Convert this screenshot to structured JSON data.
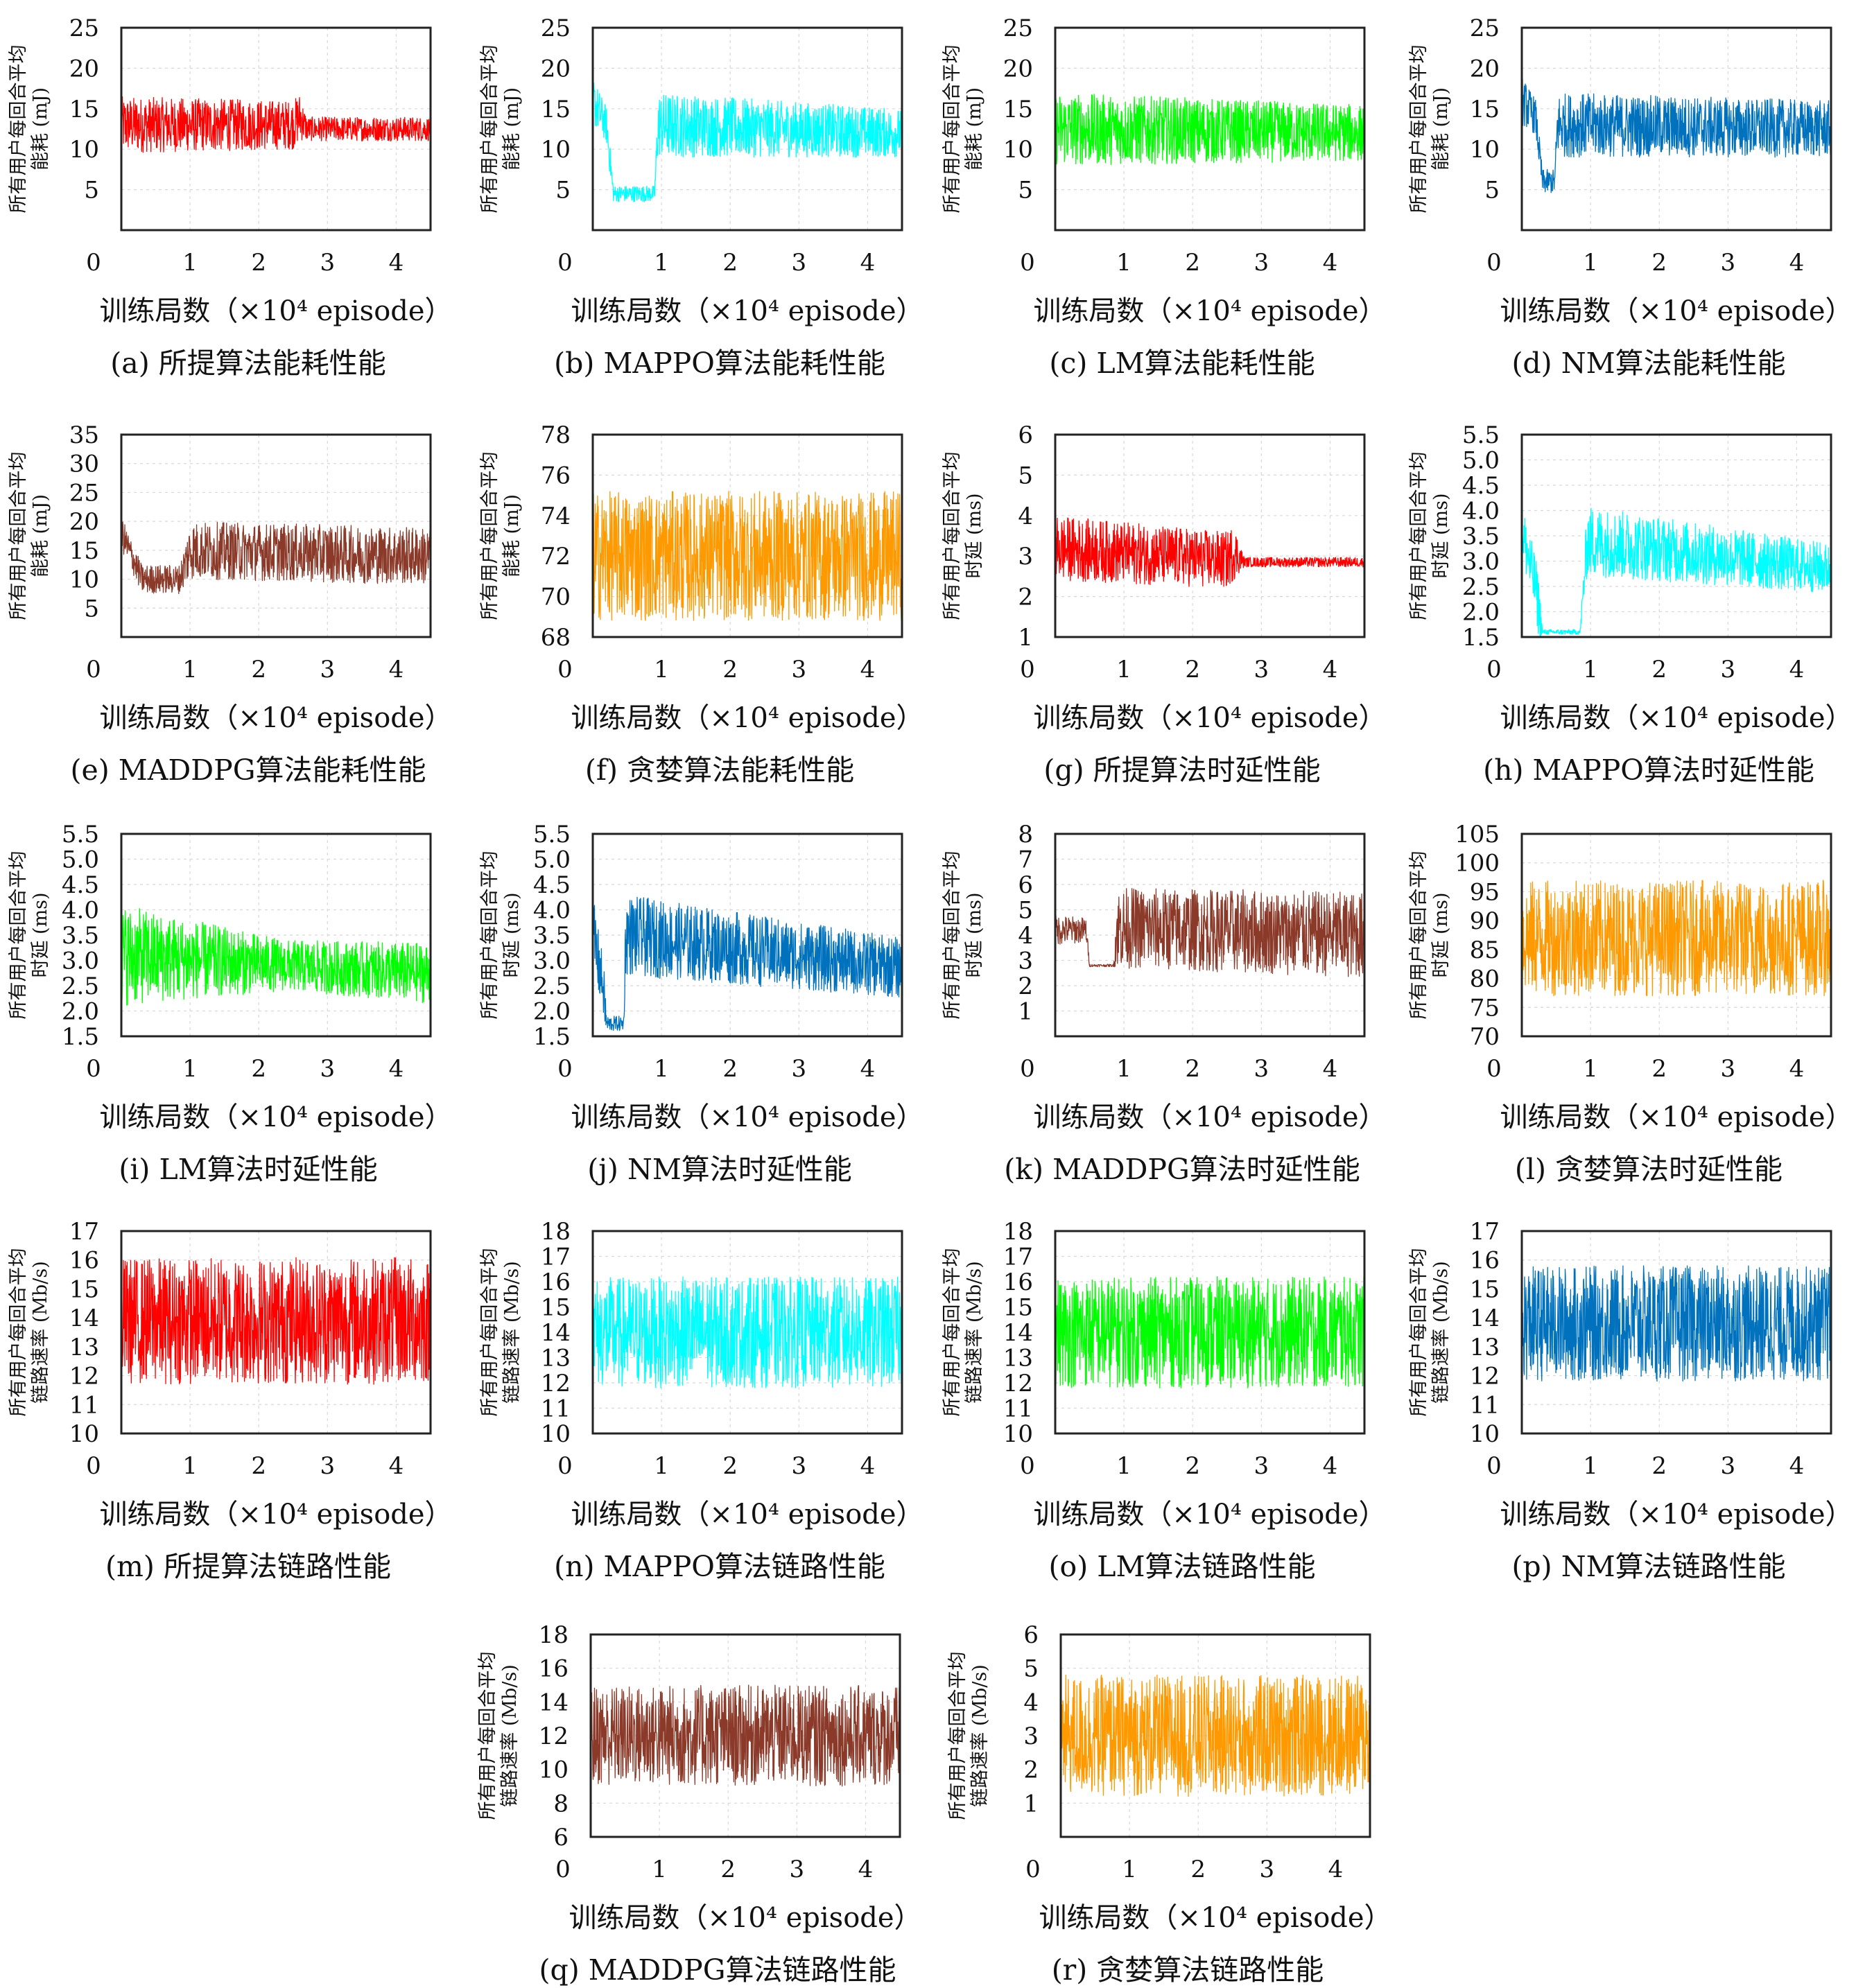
{
  "common": {
    "xlabel": "训练局数（×10⁴ episode）",
    "xticks": [
      "0",
      "1",
      "2",
      "3",
      "4"
    ],
    "xlim": [
      0,
      4.5
    ]
  },
  "panels": [
    {
      "caption": "(a) 所提算法能耗性能",
      "ylabel": [
        "所有用户每回合平均",
        "能耗 (mJ)"
      ],
      "ylim": [
        0,
        25
      ],
      "yticks": [
        "5",
        "10",
        "15",
        "20",
        "25"
      ],
      "color": "#ff0000"
    },
    {
      "caption": "(b) MAPPO算法能耗性能",
      "ylabel": [
        "所有用户每回合平均",
        "能耗 (mJ)"
      ],
      "ylim": [
        0,
        25
      ],
      "yticks": [
        "5",
        "10",
        "15",
        "20",
        "25"
      ],
      "color": "#00ffff"
    },
    {
      "caption": "(c) LM算法能耗性能",
      "ylabel": [
        "所有用户每回合平均",
        "能耗 (mJ)"
      ],
      "ylim": [
        0,
        25
      ],
      "yticks": [
        "5",
        "10",
        "15",
        "20",
        "25"
      ],
      "color": "#00ff00"
    },
    {
      "caption": "(d) NM算法能耗性能",
      "ylabel": [
        "所有用户每回合平均",
        "能耗 (mJ)"
      ],
      "ylim": [
        0,
        25
      ],
      "yticks": [
        "5",
        "10",
        "15",
        "20",
        "25"
      ],
      "color": "#0072bd"
    },
    {
      "caption": "(e) MADDPG算法能耗性能",
      "ylabel": [
        "所有用户每回合平均",
        "能耗 (mJ)"
      ],
      "ylim": [
        0,
        35
      ],
      "yticks": [
        "5",
        "10",
        "15",
        "20",
        "25",
        "30",
        "35"
      ],
      "color": "#8b3a2a"
    },
    {
      "caption": "(f) 贪婪算法能耗性能",
      "ylabel": [
        "所有用户每回合平均",
        "能耗 (mJ)"
      ],
      "ylim": [
        68,
        78
      ],
      "yticks": [
        "68",
        "70",
        "72",
        "74",
        "76",
        "78"
      ],
      "color": "#ff9900"
    },
    {
      "caption": "(g) 所提算法时延性能",
      "ylabel": [
        "所有用户每回合平均",
        "时延 (ms)"
      ],
      "ylim": [
        1,
        6
      ],
      "yticks": [
        "1",
        "2",
        "3",
        "4",
        "5",
        "6"
      ],
      "color": "#ff0000"
    },
    {
      "caption": "(h) MAPPO算法时延性能",
      "ylabel": [
        "所有用户每回合平均",
        "时延 (ms)"
      ],
      "ylim": [
        1.5,
        5.5
      ],
      "yticks": [
        "1.5",
        "2.0",
        "2.5",
        "3.0",
        "3.5",
        "4.0",
        "4.5",
        "5.0",
        "5.5"
      ],
      "color": "#00ffff"
    },
    {
      "caption": "(i) LM算法时延性能",
      "ylabel": [
        "所有用户每回合平均",
        "时延 (ms)"
      ],
      "ylim": [
        1.5,
        5.5
      ],
      "yticks": [
        "1.5",
        "2.0",
        "2.5",
        "3.0",
        "3.5",
        "4.0",
        "4.5",
        "5.0",
        "5.5"
      ],
      "color": "#00ff00"
    },
    {
      "caption": "(j) NM算法时延性能",
      "ylabel": [
        "所有用户每回合平均",
        "时延 (ms)"
      ],
      "ylim": [
        1.5,
        5.5
      ],
      "yticks": [
        "1.5",
        "2.0",
        "2.5",
        "3.0",
        "3.5",
        "4.0",
        "4.5",
        "5.0",
        "5.5"
      ],
      "color": "#0072bd"
    },
    {
      "caption": "(k) MADDPG算法时延性能",
      "ylabel": [
        "所有用户每回合平均",
        "时延 (ms)"
      ],
      "ylim": [
        0,
        8
      ],
      "yticks": [
        "1",
        "2",
        "3",
        "4",
        "5",
        "6",
        "7",
        "8"
      ],
      "color": "#8b3a2a"
    },
    {
      "caption": "(l) 贪婪算法时延性能",
      "ylabel": [
        "所有用户每回合平均",
        "时延 (ms)"
      ],
      "ylim": [
        70,
        105
      ],
      "yticks": [
        "70",
        "75",
        "80",
        "85",
        "90",
        "95",
        "100",
        "105"
      ],
      "color": "#ff9900"
    },
    {
      "caption": "(m) 所提算法链路性能",
      "ylabel": [
        "所有用户每回合平均",
        "链路速率 (Mb/s)"
      ],
      "ylim": [
        10,
        17
      ],
      "yticks": [
        "10",
        "11",
        "12",
        "13",
        "14",
        "15",
        "16",
        "17"
      ],
      "color": "#ff0000"
    },
    {
      "caption": "(n) MAPPO算法链路性能",
      "ylabel": [
        "所有用户每回合平均",
        "链路速率 (Mb/s)"
      ],
      "ylim": [
        10,
        18
      ],
      "yticks": [
        "10",
        "11",
        "12",
        "13",
        "14",
        "15",
        "16",
        "17",
        "18"
      ],
      "color": "#00ffff"
    },
    {
      "caption": "(o) LM算法链路性能",
      "ylabel": [
        "所有用户每回合平均",
        "链路速率 (Mb/s)"
      ],
      "ylim": [
        10,
        18
      ],
      "yticks": [
        "10",
        "11",
        "12",
        "13",
        "14",
        "15",
        "16",
        "17",
        "18"
      ],
      "color": "#00ff00"
    },
    {
      "caption": "(p) NM算法链路性能",
      "ylabel": [
        "所有用户每回合平均",
        "链路速率 (Mb/s)"
      ],
      "ylim": [
        10,
        17
      ],
      "yticks": [
        "10",
        "11",
        "12",
        "13",
        "14",
        "15",
        "16",
        "17"
      ],
      "color": "#0072bd"
    },
    {
      "caption": "(q) MADDPG算法链路性能",
      "ylabel": [
        "所有用户每回合平均",
        "链路速率 (Mb/s)"
      ],
      "ylim": [
        6,
        18
      ],
      "yticks": [
        "6",
        "8",
        "10",
        "12",
        "14",
        "16",
        "18"
      ],
      "color": "#8b3a2a"
    },
    {
      "caption": "(r) 贪婪算法链路性能",
      "ylabel": [
        "所有用户每回合平均",
        "链路速率 (Mb/s)"
      ],
      "ylim": [
        0,
        6
      ],
      "yticks": [
        "1",
        "2",
        "3",
        "4",
        "5",
        "6"
      ],
      "color": "#ff9900"
    }
  ],
  "chart_data": [
    {
      "type": "line",
      "series": [
        {
          "trend": [
            [
              0,
              13
            ],
            [
              2.5,
              13
            ],
            [
              2.6,
              14
            ],
            [
              2.7,
              12.5
            ],
            [
              4.5,
              12.5
            ]
          ],
          "spread": [
            [
              0,
              3.5
            ],
            [
              2.6,
              3.0
            ],
            [
              2.7,
              1.5
            ],
            [
              4.5,
              1.5
            ]
          ]
        }
      ]
    },
    {
      "type": "line",
      "series": [
        {
          "trend": [
            [
              0,
              16
            ],
            [
              0.2,
              13
            ],
            [
              0.3,
              4.5
            ],
            [
              0.9,
              4.5
            ],
            [
              0.95,
              13
            ],
            [
              4.5,
              12
            ]
          ],
          "spread": [
            [
              0,
              3
            ],
            [
              0.25,
              2
            ],
            [
              0.3,
              1
            ],
            [
              0.9,
              1
            ],
            [
              0.95,
              4
            ],
            [
              4.5,
              3
            ]
          ]
        }
      ]
    },
    {
      "type": "line",
      "series": [
        {
          "trend": [
            [
              0,
              12.5
            ],
            [
              4.5,
              12
            ]
          ],
          "spread": [
            [
              0,
              4.5
            ],
            [
              4.5,
              3.5
            ]
          ]
        }
      ]
    },
    {
      "type": "line",
      "series": [
        {
          "trend": [
            [
              0,
              16
            ],
            [
              0.2,
              14
            ],
            [
              0.3,
              6
            ],
            [
              0.48,
              6
            ],
            [
              0.52,
              13
            ],
            [
              4.5,
              12.5
            ]
          ],
          "spread": [
            [
              0,
              3
            ],
            [
              0.25,
              2
            ],
            [
              0.3,
              1.5
            ],
            [
              0.48,
              1.5
            ],
            [
              0.52,
              4
            ],
            [
              4.5,
              3.5
            ]
          ]
        }
      ]
    },
    {
      "type": "line",
      "series": [
        {
          "trend": [
            [
              0,
              18
            ],
            [
              0.3,
              10
            ],
            [
              0.85,
              10
            ],
            [
              1.0,
              15
            ],
            [
              4.5,
              14
            ]
          ],
          "spread": [
            [
              0,
              3
            ],
            [
              0.3,
              2.5
            ],
            [
              0.85,
              2.5
            ],
            [
              1.0,
              5
            ],
            [
              4.5,
              5
            ]
          ]
        }
      ]
    },
    {
      "type": "line",
      "series": [
        {
          "trend": [
            [
              0,
              72
            ],
            [
              4.5,
              72
            ]
          ],
          "spread": [
            [
              0,
              3.2
            ],
            [
              4.5,
              3.2
            ]
          ]
        }
      ]
    },
    {
      "type": "line",
      "series": [
        {
          "trend": [
            [
              0,
              3.2
            ],
            [
              2.5,
              2.9
            ],
            [
              2.6,
              3.1
            ],
            [
              2.75,
              2.85
            ],
            [
              4.5,
              2.85
            ]
          ],
          "spread": [
            [
              0,
              0.8
            ],
            [
              2.6,
              0.7
            ],
            [
              2.75,
              0.12
            ],
            [
              4.5,
              0.12
            ]
          ]
        }
      ]
    },
    {
      "type": "line",
      "series": [
        {
          "trend": [
            [
              0,
              3.6
            ],
            [
              0.2,
              2.5
            ],
            [
              0.3,
              1.6
            ],
            [
              0.85,
              1.6
            ],
            [
              0.95,
              3.4
            ],
            [
              4.5,
              2.85
            ]
          ],
          "spread": [
            [
              0,
              0.6
            ],
            [
              0.25,
              0.6
            ],
            [
              0.3,
              0.05
            ],
            [
              0.85,
              0.05
            ],
            [
              0.95,
              0.7
            ],
            [
              4.5,
              0.5
            ]
          ]
        }
      ]
    },
    {
      "type": "line",
      "series": [
        {
          "trend": [
            [
              0,
              3.1
            ],
            [
              2.4,
              2.9
            ],
            [
              4.5,
              2.75
            ]
          ],
          "spread": [
            [
              0,
              1.0
            ],
            [
              2.4,
              0.5
            ],
            [
              4.5,
              0.6
            ]
          ]
        }
      ]
    },
    {
      "type": "line",
      "series": [
        {
          "trend": [
            [
              0,
              3.5
            ],
            [
              0.15,
              2.5
            ],
            [
              0.2,
              1.75
            ],
            [
              0.45,
              1.75
            ],
            [
              0.48,
              3.5
            ],
            [
              4.5,
              2.85
            ]
          ],
          "spread": [
            [
              0,
              0.8
            ],
            [
              0.18,
              0.5
            ],
            [
              0.2,
              0.15
            ],
            [
              0.45,
              0.15
            ],
            [
              0.48,
              0.8
            ],
            [
              4.5,
              0.6
            ]
          ]
        }
      ]
    },
    {
      "type": "line",
      "series": [
        {
          "trend": [
            [
              0,
              4.2
            ],
            [
              0.45,
              4.2
            ],
            [
              0.5,
              2.8
            ],
            [
              0.85,
              2.8
            ],
            [
              0.9,
              4.3
            ],
            [
              4.5,
              4.0
            ]
          ],
          "spread": [
            [
              0,
              0.6
            ],
            [
              0.45,
              0.5
            ],
            [
              0.5,
              0.05
            ],
            [
              0.85,
              0.05
            ],
            [
              0.9,
              1.6
            ],
            [
              4.5,
              1.7
            ]
          ]
        }
      ]
    },
    {
      "type": "line",
      "series": [
        {
          "trend": [
            [
              0,
              87
            ],
            [
              4.5,
              87
            ]
          ],
          "spread": [
            [
              0,
              10
            ],
            [
              4.5,
              10
            ]
          ]
        }
      ]
    },
    {
      "type": "line",
      "series": [
        {
          "trend": [
            [
              0,
              13.9
            ],
            [
              4.5,
              13.9
            ]
          ],
          "spread": [
            [
              0,
              2.2
            ],
            [
              4.5,
              2.2
            ]
          ]
        }
      ]
    },
    {
      "type": "line",
      "series": [
        {
          "trend": [
            [
              0,
              14
            ],
            [
              4.5,
              14
            ]
          ],
          "spread": [
            [
              0,
              2.2
            ],
            [
              4.5,
              2.2
            ]
          ]
        }
      ]
    },
    {
      "type": "line",
      "series": [
        {
          "trend": [
            [
              0,
              14
            ],
            [
              4.5,
              14
            ]
          ],
          "spread": [
            [
              0,
              2.2
            ],
            [
              4.5,
              2.2
            ]
          ]
        }
      ]
    },
    {
      "type": "line",
      "series": [
        {
          "trend": [
            [
              0,
              13.8
            ],
            [
              4.5,
              13.8
            ]
          ],
          "spread": [
            [
              0,
              2.0
            ],
            [
              4.5,
              2.0
            ]
          ]
        }
      ]
    },
    {
      "type": "line",
      "series": [
        {
          "trend": [
            [
              0,
              12
            ],
            [
              4.5,
              12
            ]
          ],
          "spread": [
            [
              0,
              3.0
            ],
            [
              4.5,
              3.0
            ]
          ]
        }
      ]
    },
    {
      "type": "line",
      "series": [
        {
          "trend": [
            [
              0,
              3.0
            ],
            [
              4.5,
              3.0
            ]
          ],
          "spread": [
            [
              0,
              1.8
            ],
            [
              4.5,
              1.8
            ]
          ]
        }
      ]
    }
  ]
}
